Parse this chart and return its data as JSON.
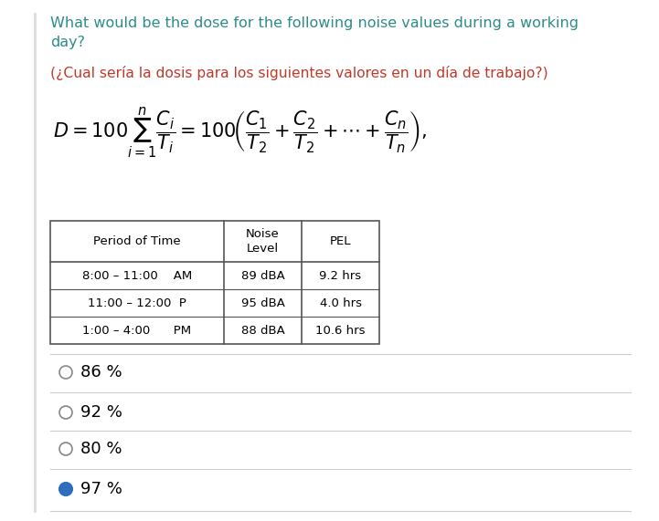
{
  "title_en": "What would be the dose for the following noise values during a working\nday?",
  "title_es": "(¿Cual sería la dosis para los siguientes valores en un día de trabajo?)",
  "title_color_en": "#2e8b8b",
  "title_color_es": "#c0392b",
  "table_headers": [
    "Period of Time",
    "Noise\nLevel",
    "PEL"
  ],
  "table_rows": [
    [
      "8:00 – 11:00    AM",
      "89 dBA",
      "9.2 hrs"
    ],
    [
      "11:00 – 12:00  P",
      "95 dBA",
      "4.0 hrs"
    ],
    [
      "1:00 – 4:00      PM",
      "88 dBA",
      "10.6 hrs"
    ]
  ],
  "options": [
    "86 %",
    "92 %",
    "80 %",
    "97 %"
  ],
  "selected_option": 3,
  "bg_color": "#ffffff",
  "text_color": "#000000",
  "selected_color": "#2e6ebd",
  "line_color": "#cccccc",
  "border_color": "#555555"
}
